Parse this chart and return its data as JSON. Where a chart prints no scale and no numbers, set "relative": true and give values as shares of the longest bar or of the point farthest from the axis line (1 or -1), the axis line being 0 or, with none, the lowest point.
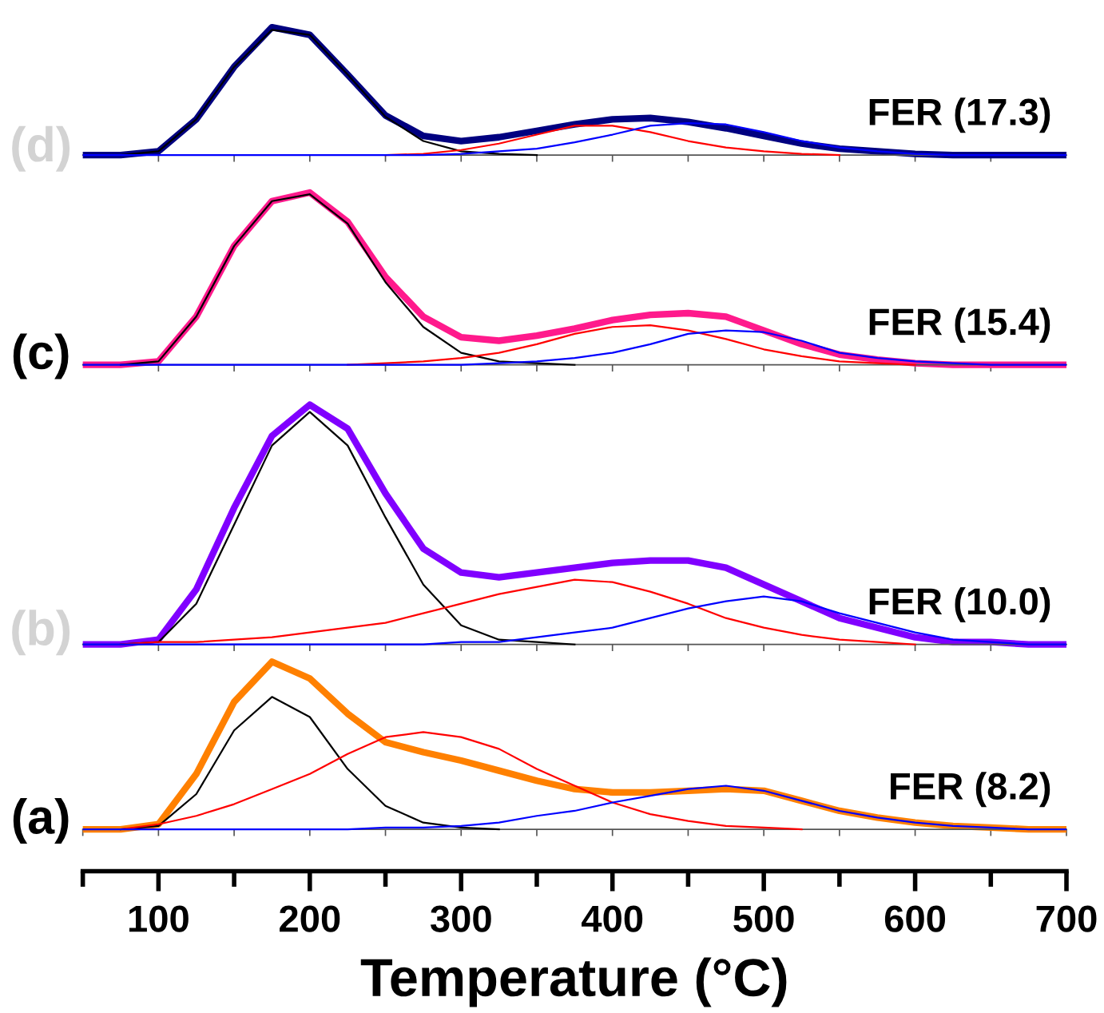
{
  "chart_data": [
    {
      "type": "line",
      "relative": true,
      "tick_labels": false,
      "xlim": [
        50,
        700
      ],
      "annotations": [
        "(d)",
        "FER (17.3)"
      ],
      "xticks": [
        {
          "value": 100,
          "label": null
        },
        {
          "value": 150,
          "label": null
        },
        {
          "value": 200,
          "label": null
        },
        {
          "value": 250,
          "label": null
        },
        {
          "value": 300,
          "label": null
        },
        {
          "value": 350,
          "label": null
        },
        {
          "value": 400,
          "label": null
        },
        {
          "value": 450,
          "label": null
        },
        {
          "value": 500,
          "label": null
        },
        {
          "value": 550,
          "label": null
        },
        {
          "value": 600,
          "label": null
        },
        {
          "value": 650,
          "label": null
        }
      ],
      "x": [
        50,
        75,
        100,
        125,
        150,
        175,
        200,
        225,
        250,
        275,
        300,
        325,
        350,
        375,
        400,
        425,
        450,
        475,
        500,
        525,
        550,
        575,
        600,
        625,
        650,
        675,
        700
      ],
      "series": [
        {
          "color": "#000080",
          "values": [
            0,
            0,
            0.03,
            0.28,
            0.69,
            1.0,
            0.94,
            0.63,
            0.31,
            0.15,
            0.11,
            0.14,
            0.19,
            0.24,
            0.28,
            0.29,
            0.26,
            0.21,
            0.15,
            0.09,
            0.05,
            0.03,
            0.01,
            0,
            0,
            0,
            0
          ]
        },
        {
          "color": "#000000",
          "values": [
            null,
            0,
            0.03,
            0.28,
            0.69,
            0.98,
            0.94,
            0.63,
            0.3,
            0.11,
            0.03,
            0.01,
            0,
            null,
            null,
            null,
            null,
            null,
            null,
            null,
            null,
            null,
            null,
            null,
            null,
            null,
            null
          ]
        },
        {
          "color": "#ff0000",
          "values": [
            null,
            null,
            null,
            null,
            null,
            null,
            null,
            null,
            0,
            0.01,
            0.04,
            0.09,
            0.16,
            0.23,
            0.23,
            0.18,
            0.11,
            0.06,
            0.03,
            0.01,
            0,
            null,
            null,
            null,
            null,
            null,
            null
          ]
        },
        {
          "color": "#0000ff",
          "values": [
            0,
            0,
            0,
            0,
            0,
            0,
            0,
            0,
            0,
            0,
            0.01,
            0.03,
            0.05,
            0.1,
            0.16,
            0.23,
            0.25,
            0.24,
            0.18,
            0.11,
            0.06,
            0.03,
            0.01,
            0,
            0,
            0,
            0
          ]
        }
      ]
    },
    {
      "type": "line",
      "relative": true,
      "tick_labels": false,
      "xlim": [
        50,
        700
      ],
      "annotations": [
        "(c)",
        "FER (15.4)"
      ],
      "xticks": [
        {
          "value": 100,
          "label": null
        },
        {
          "value": 150,
          "label": null
        },
        {
          "value": 200,
          "label": null
        },
        {
          "value": 250,
          "label": null
        },
        {
          "value": 300,
          "label": null
        },
        {
          "value": 350,
          "label": null
        },
        {
          "value": 400,
          "label": null
        },
        {
          "value": 450,
          "label": null
        },
        {
          "value": 500,
          "label": null
        },
        {
          "value": 550,
          "label": null
        },
        {
          "value": 600,
          "label": null
        },
        {
          "value": 650,
          "label": null
        }
      ],
      "x": [
        50,
        75,
        100,
        125,
        150,
        175,
        200,
        225,
        250,
        275,
        300,
        325,
        350,
        375,
        400,
        425,
        450,
        475,
        500,
        525,
        550,
        575,
        600,
        625,
        650,
        675,
        700
      ],
      "series": [
        {
          "color": "#ff1a8c",
          "values": [
            0,
            0,
            0.02,
            0.28,
            0.69,
            0.95,
            1.0,
            0.83,
            0.51,
            0.28,
            0.16,
            0.14,
            0.17,
            0.21,
            0.26,
            0.29,
            0.3,
            0.28,
            0.2,
            0.12,
            0.06,
            0.03,
            0.01,
            0,
            0,
            0,
            0
          ]
        },
        {
          "color": "#000000",
          "values": [
            null,
            0,
            0.02,
            0.28,
            0.69,
            0.95,
            0.99,
            0.82,
            0.48,
            0.22,
            0.07,
            0.02,
            0.01,
            0,
            null,
            null,
            null,
            null,
            null,
            null,
            null,
            null,
            null,
            null,
            null,
            null,
            null
          ]
        },
        {
          "color": "#ff0000",
          "values": [
            null,
            null,
            null,
            null,
            null,
            null,
            null,
            0,
            0.01,
            0.02,
            0.04,
            0.07,
            0.12,
            0.18,
            0.22,
            0.23,
            0.2,
            0.15,
            0.09,
            0.05,
            0.02,
            0.01,
            0,
            null,
            null,
            null,
            null
          ]
        },
        {
          "color": "#0000ff",
          "values": [
            0,
            0,
            0,
            0,
            0,
            0,
            0,
            0,
            0,
            0,
            0,
            0.01,
            0.02,
            0.04,
            0.07,
            0.12,
            0.18,
            0.2,
            0.19,
            0.14,
            0.07,
            0.04,
            0.02,
            0.01,
            0,
            0,
            0
          ]
        }
      ]
    },
    {
      "type": "line",
      "relative": true,
      "tick_labels": false,
      "xlim": [
        50,
        700
      ],
      "annotations": [
        "(b)",
        "FER (10.0)"
      ],
      "xticks": [
        {
          "value": 100,
          "label": null
        },
        {
          "value": 150,
          "label": null
        },
        {
          "value": 200,
          "label": null
        },
        {
          "value": 250,
          "label": null
        },
        {
          "value": 300,
          "label": null
        },
        {
          "value": 350,
          "label": null
        },
        {
          "value": 400,
          "label": null
        },
        {
          "value": 450,
          "label": null
        },
        {
          "value": 500,
          "label": null
        },
        {
          "value": 550,
          "label": null
        },
        {
          "value": 600,
          "label": null
        },
        {
          "value": 650,
          "label": null
        }
      ],
      "x": [
        50,
        75,
        100,
        125,
        150,
        175,
        200,
        225,
        250,
        275,
        300,
        325,
        350,
        375,
        400,
        425,
        450,
        475,
        500,
        525,
        550,
        575,
        600,
        625,
        650,
        675,
        700
      ],
      "series": [
        {
          "color": "#8000ff",
          "values": [
            0,
            0,
            0.02,
            0.23,
            0.57,
            0.87,
            1.0,
            0.9,
            0.63,
            0.4,
            0.3,
            0.28,
            0.3,
            0.32,
            0.34,
            0.35,
            0.35,
            0.32,
            0.25,
            0.18,
            0.11,
            0.07,
            0.03,
            0.01,
            0.01,
            0,
            0
          ]
        },
        {
          "color": "#000000",
          "values": [
            null,
            0,
            0.01,
            0.17,
            0.5,
            0.83,
            0.97,
            0.83,
            0.53,
            0.25,
            0.08,
            0.02,
            0.01,
            0,
            null,
            null,
            null,
            null,
            null,
            null,
            null,
            null,
            null,
            null,
            null,
            null,
            null
          ]
        },
        {
          "color": "#ff0000",
          "values": [
            null,
            0,
            0.01,
            0.01,
            0.02,
            0.03,
            0.05,
            0.07,
            0.09,
            0.13,
            0.17,
            0.21,
            0.24,
            0.27,
            0.26,
            0.22,
            0.17,
            0.11,
            0.07,
            0.04,
            0.02,
            0.01,
            0,
            null,
            null,
            null,
            null
          ]
        },
        {
          "color": "#0000ff",
          "values": [
            0,
            0,
            0,
            0,
            0,
            0,
            0,
            0,
            0,
            0,
            0.01,
            0.01,
            0.03,
            0.05,
            0.07,
            0.11,
            0.15,
            0.18,
            0.2,
            0.18,
            0.13,
            0.09,
            0.05,
            0.02,
            0.01,
            0,
            0
          ]
        }
      ]
    },
    {
      "type": "line",
      "relative": true,
      "tick_labels": "x",
      "xlim": [
        50,
        700
      ],
      "xlabel": "Temperature (°C)",
      "annotations": [
        "(a)",
        "FER (8.2)"
      ],
      "xticks": [
        {
          "value": 50,
          "label": null
        },
        100,
        {
          "value": 150,
          "label": null
        },
        200,
        {
          "value": 250,
          "label": null
        },
        300,
        {
          "value": 350,
          "label": null
        },
        400,
        {
          "value": 450,
          "label": null
        },
        500,
        {
          "value": 550,
          "label": null
        },
        600,
        {
          "value": 650,
          "label": null
        },
        700
      ],
      "x": [
        50,
        75,
        100,
        125,
        150,
        175,
        200,
        225,
        250,
        275,
        300,
        325,
        350,
        375,
        400,
        425,
        450,
        475,
        500,
        525,
        550,
        575,
        600,
        625,
        650,
        675,
        700
      ],
      "series": [
        {
          "color": "#ff8000",
          "values": [
            0,
            0,
            0.03,
            0.33,
            0.76,
            1.0,
            0.9,
            0.69,
            0.52,
            0.46,
            0.41,
            0.35,
            0.29,
            0.24,
            0.22,
            0.22,
            0.23,
            0.24,
            0.23,
            0.17,
            0.11,
            0.07,
            0.04,
            0.02,
            0.01,
            0,
            0
          ]
        },
        {
          "color": "#000000",
          "values": [
            null,
            0,
            0.02,
            0.21,
            0.59,
            0.79,
            0.67,
            0.36,
            0.14,
            0.04,
            0.01,
            0,
            null,
            null,
            null,
            null,
            null,
            null,
            null,
            null,
            null,
            null,
            null,
            null,
            null,
            null,
            null
          ]
        },
        {
          "color": "#ff0000",
          "values": [
            null,
            0,
            0.03,
            0.08,
            0.15,
            0.24,
            0.33,
            0.45,
            0.55,
            0.58,
            0.55,
            0.48,
            0.36,
            0.26,
            0.16,
            0.09,
            0.05,
            0.02,
            0.01,
            0,
            null,
            null,
            null,
            null,
            null,
            null,
            null
          ]
        },
        {
          "color": "#0000ff",
          "values": [
            0,
            0,
            0,
            0,
            0,
            0,
            0,
            0,
            0.01,
            0.01,
            0.02,
            0.04,
            0.08,
            0.11,
            0.16,
            0.2,
            0.24,
            0.26,
            0.23,
            0.17,
            0.11,
            0.07,
            0.04,
            0.02,
            0.01,
            0,
            0
          ]
        }
      ]
    }
  ]
}
